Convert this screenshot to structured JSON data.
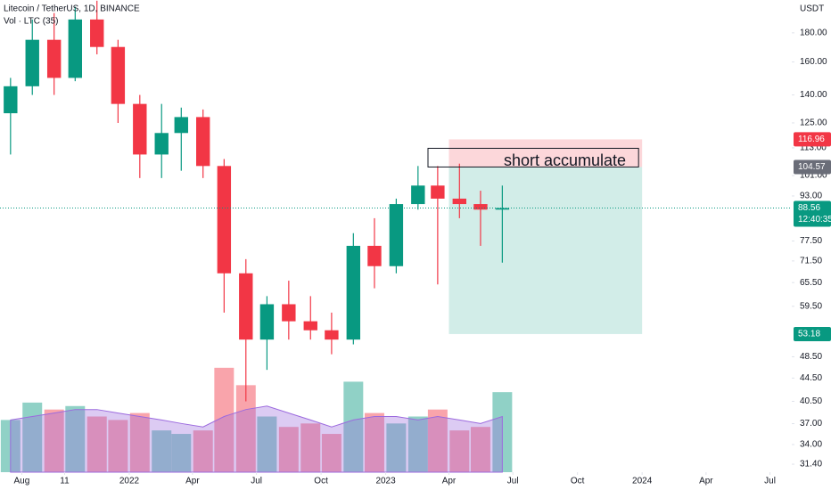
{
  "chart_data": {
    "type": "candlestick",
    "title": "Litecoin / TetherUS, 1D, BINANCE",
    "volume_title": "Vol · LTC (35)",
    "currency": "USDT",
    "annotation": "short accumulate",
    "log_scale": true,
    "grid": false,
    "up_color": "#089981",
    "down_color": "#f23645",
    "volume_ma_color": "#9c6ade",
    "x": [
      "2021-07",
      "2021-08",
      "2021-09",
      "2021-10",
      "2021-11",
      "2021-12",
      "2022-01",
      "2022-02",
      "2022-03",
      "2022-04",
      "2022-05",
      "2022-06",
      "2022-07",
      "2022-08",
      "2022-09",
      "2022-10",
      "2022-11",
      "2022-12",
      "2023-01",
      "2023-02",
      "2023-03",
      "2023-04",
      "2023-05",
      "2023-06"
    ],
    "open": [
      130,
      145,
      175,
      150,
      190,
      170,
      135,
      110,
      120,
      128,
      105,
      68,
      52,
      60,
      56,
      54,
      52,
      76,
      70,
      90,
      97,
      92,
      90,
      88
    ],
    "high": [
      150,
      190,
      195,
      200,
      205,
      175,
      140,
      135,
      133,
      132,
      108,
      72,
      62,
      66,
      62,
      58,
      80,
      85,
      92,
      105,
      105,
      106,
      95,
      97
    ],
    "low": [
      110,
      140,
      140,
      148,
      165,
      125,
      100,
      100,
      103,
      100,
      58,
      40.5,
      46,
      52,
      52,
      49,
      51,
      64,
      68,
      88,
      65,
      85,
      76,
      71
    ],
    "close": [
      145,
      175,
      150,
      190,
      170,
      135,
      110,
      120,
      128,
      105,
      68,
      52,
      60,
      56,
      54,
      52,
      76,
      70,
      90,
      97,
      92,
      90,
      88,
      88.56
    ],
    "volume": [
      150000000,
      200000000,
      180000000,
      190000000,
      160000000,
      150000000,
      170000000,
      120000000,
      110000000,
      120000000,
      300000000,
      250000000,
      160000000,
      130000000,
      140000000,
      110000000,
      260000000,
      170000000,
      140000000,
      160000000,
      180000000,
      120000000,
      130000000,
      230000000
    ],
    "volume_ma": [
      150000000,
      160000000,
      170000000,
      180000000,
      180000000,
      170000000,
      160000000,
      150000000,
      140000000,
      130000000,
      160000000,
      180000000,
      190000000,
      170000000,
      150000000,
      130000000,
      150000000,
      160000000,
      160000000,
      150000000,
      160000000,
      150000000,
      140000000,
      160000000
    ],
    "volume_lim": [
      0,
      320000000
    ],
    "countdown": "12:40:35",
    "position": {
      "start": "2023-04",
      "end": "2024-01",
      "entry": 104.57,
      "stop": 116.96,
      "target": 53.18,
      "profit_color": "#089981",
      "loss_color": "#f23645",
      "entry_color": "#6a6d78"
    },
    "xlim": [
      "2021-07",
      "2024-08"
    ],
    "xticks": [
      {
        "value": "2021-08",
        "label": "Aug"
      },
      {
        "value": "2021-10",
        "label": "11"
      },
      {
        "value": "2022-01",
        "label": "2022"
      },
      {
        "value": "2022-04",
        "label": "Apr"
      },
      {
        "value": "2022-07",
        "label": "Jul"
      },
      {
        "value": "2022-10",
        "label": "Oct"
      },
      {
        "value": "2023-01",
        "label": "2023"
      },
      {
        "value": "2023-04",
        "label": "Apr"
      },
      {
        "value": "2023-07",
        "label": "Jul"
      },
      {
        "value": "2023-10",
        "label": "Oct"
      },
      {
        "value": "2024-01",
        "label": "2024"
      },
      {
        "value": "2024-04",
        "label": "Apr"
      },
      {
        "value": "2024-07",
        "label": "Jul"
      }
    ],
    "ylim": [
      30.4,
      205.6
    ],
    "yticks": [
      {
        "value": 31.4,
        "label": "31.40"
      },
      {
        "value": 34,
        "label": "34.00"
      },
      {
        "value": 37,
        "label": "37.00"
      },
      {
        "value": 40.5,
        "label": "40.50"
      },
      {
        "value": 44.5,
        "label": "44.50"
      },
      {
        "value": 48.5,
        "label": "48.50"
      },
      {
        "value": 59.5,
        "label": "59.50"
      },
      {
        "value": 65.5,
        "label": "65.50"
      },
      {
        "value": 71.5,
        "label": "71.50"
      },
      {
        "value": 77.5,
        "label": "77.50"
      },
      {
        "value": 93,
        "label": "93.00"
      },
      {
        "value": 101,
        "label": "101.00"
      },
      {
        "value": 113,
        "label": "113.00"
      },
      {
        "value": 125,
        "label": "125.00"
      },
      {
        "value": 140,
        "label": "140.00"
      },
      {
        "value": 160,
        "label": "160.00"
      },
      {
        "value": 180,
        "label": "180.00"
      }
    ]
  }
}
